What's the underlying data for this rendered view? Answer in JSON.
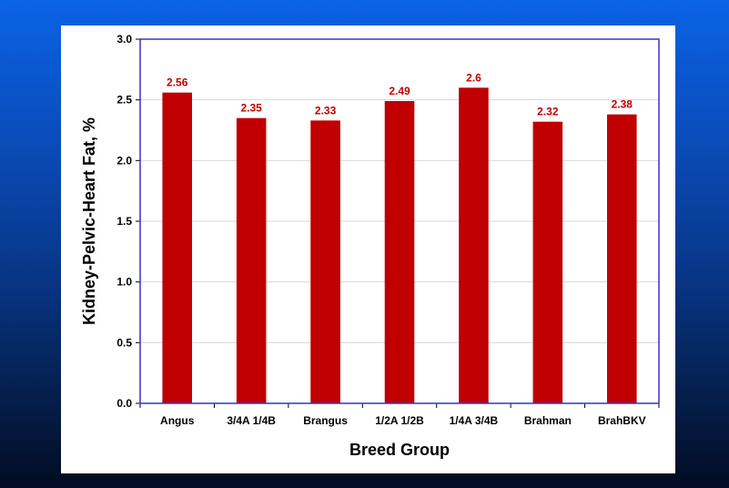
{
  "colors": {
    "bar": "#c00000",
    "data_label": "#c00000",
    "plot_border": "#3333cc",
    "gridline": "#d9d9d9"
  },
  "chart_data": {
    "type": "bar",
    "categories": [
      "Angus",
      "3/4A 1/4B",
      "Brangus",
      "1/2A 1/2B",
      "1/4A 3/4B",
      "Brahman",
      "BrahBKV"
    ],
    "values": [
      2.56,
      2.35,
      2.33,
      2.49,
      2.6,
      2.32,
      2.38
    ],
    "data_labels": [
      "2.56",
      "2.35",
      "2.33",
      "2.49",
      "2.6",
      "2.32",
      "2.38"
    ],
    "xlabel": "Breed Group",
    "ylabel": "Kidney-Pelvic-Heart Fat, %",
    "ylim": [
      0,
      3.0
    ],
    "yticks": [
      "0.0",
      "0.5",
      "1.0",
      "1.5",
      "2.0",
      "2.5",
      "3.0"
    ],
    "ytick_values": [
      0,
      0.5,
      1.0,
      1.5,
      2.0,
      2.5,
      3.0
    ],
    "grid": true,
    "legend": "none"
  }
}
